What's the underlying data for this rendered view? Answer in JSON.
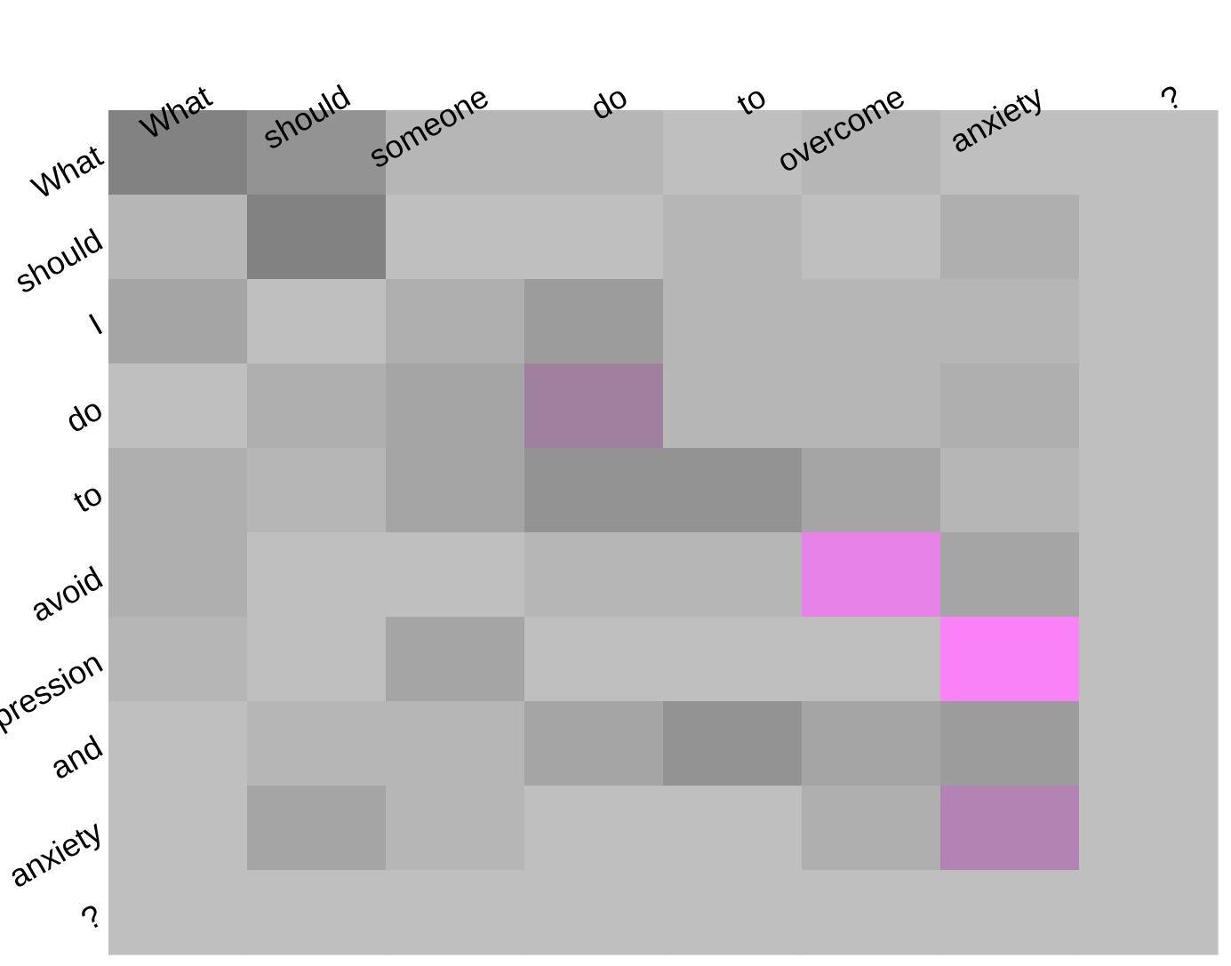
{
  "chart_data": {
    "type": "heatmap",
    "x_tokens": [
      "What",
      "should",
      "someone",
      "do",
      "to",
      "overcome",
      "anxiety",
      "?"
    ],
    "y_tokens": [
      "What",
      "should",
      "I",
      "do",
      "to",
      "avoid",
      "depression",
      "and",
      "anxiety",
      "?"
    ],
    "cell_colors": [
      [
        "#828282",
        "#939393",
        "#b6b6b6",
        "#b6b6b6",
        "#bfbfbf",
        "#b6b6b6",
        "#bfbfbf",
        "#bfbfbf"
      ],
      [
        "#b6b6b6",
        "#828282",
        "#bfbfbf",
        "#bfbfbf",
        "#b6b6b6",
        "#bfbfbf",
        "#afafaf",
        "#bfbfbf"
      ],
      [
        "#a5a5a5",
        "#bfbfbf",
        "#afafaf",
        "#9c9c9c",
        "#b6b6b6",
        "#b6b6b6",
        "#b6b6b6",
        "#bfbfbf"
      ],
      [
        "#bfbfbf",
        "#afafaf",
        "#a5a5a5",
        "#a0809f",
        "#b6b6b6",
        "#b6b6b6",
        "#afafaf",
        "#bfbfbf"
      ],
      [
        "#afafaf",
        "#b6b6b6",
        "#a5a5a5",
        "#939393",
        "#939393",
        "#a5a5a5",
        "#b6b6b6",
        "#bfbfbf"
      ],
      [
        "#afafaf",
        "#bfbfbf",
        "#bfbfbf",
        "#b6b6b6",
        "#b6b6b6",
        "#e783e8",
        "#a5a5a5",
        "#bfbfbf"
      ],
      [
        "#b6b6b6",
        "#bfbfbf",
        "#a5a5a5",
        "#bfbfbf",
        "#bfbfbf",
        "#bfbfbf",
        "#f982f9",
        "#bfbfbf"
      ],
      [
        "#bfbfbf",
        "#b6b6b6",
        "#b6b6b6",
        "#a5a5a5",
        "#939393",
        "#a5a5a5",
        "#9c9c9c",
        "#bfbfbf"
      ],
      [
        "#bfbfbf",
        "#a5a5a5",
        "#b6b6b6",
        "#bfbfbf",
        "#bfbfbf",
        "#afafaf",
        "#b383b4",
        "#bfbfbf"
      ],
      [
        "#bfbfbf",
        "#bfbfbf",
        "#bfbfbf",
        "#bfbfbf",
        "#bfbfbf",
        "#bfbfbf",
        "#bfbfbf",
        "#bfbfbf"
      ]
    ]
  }
}
